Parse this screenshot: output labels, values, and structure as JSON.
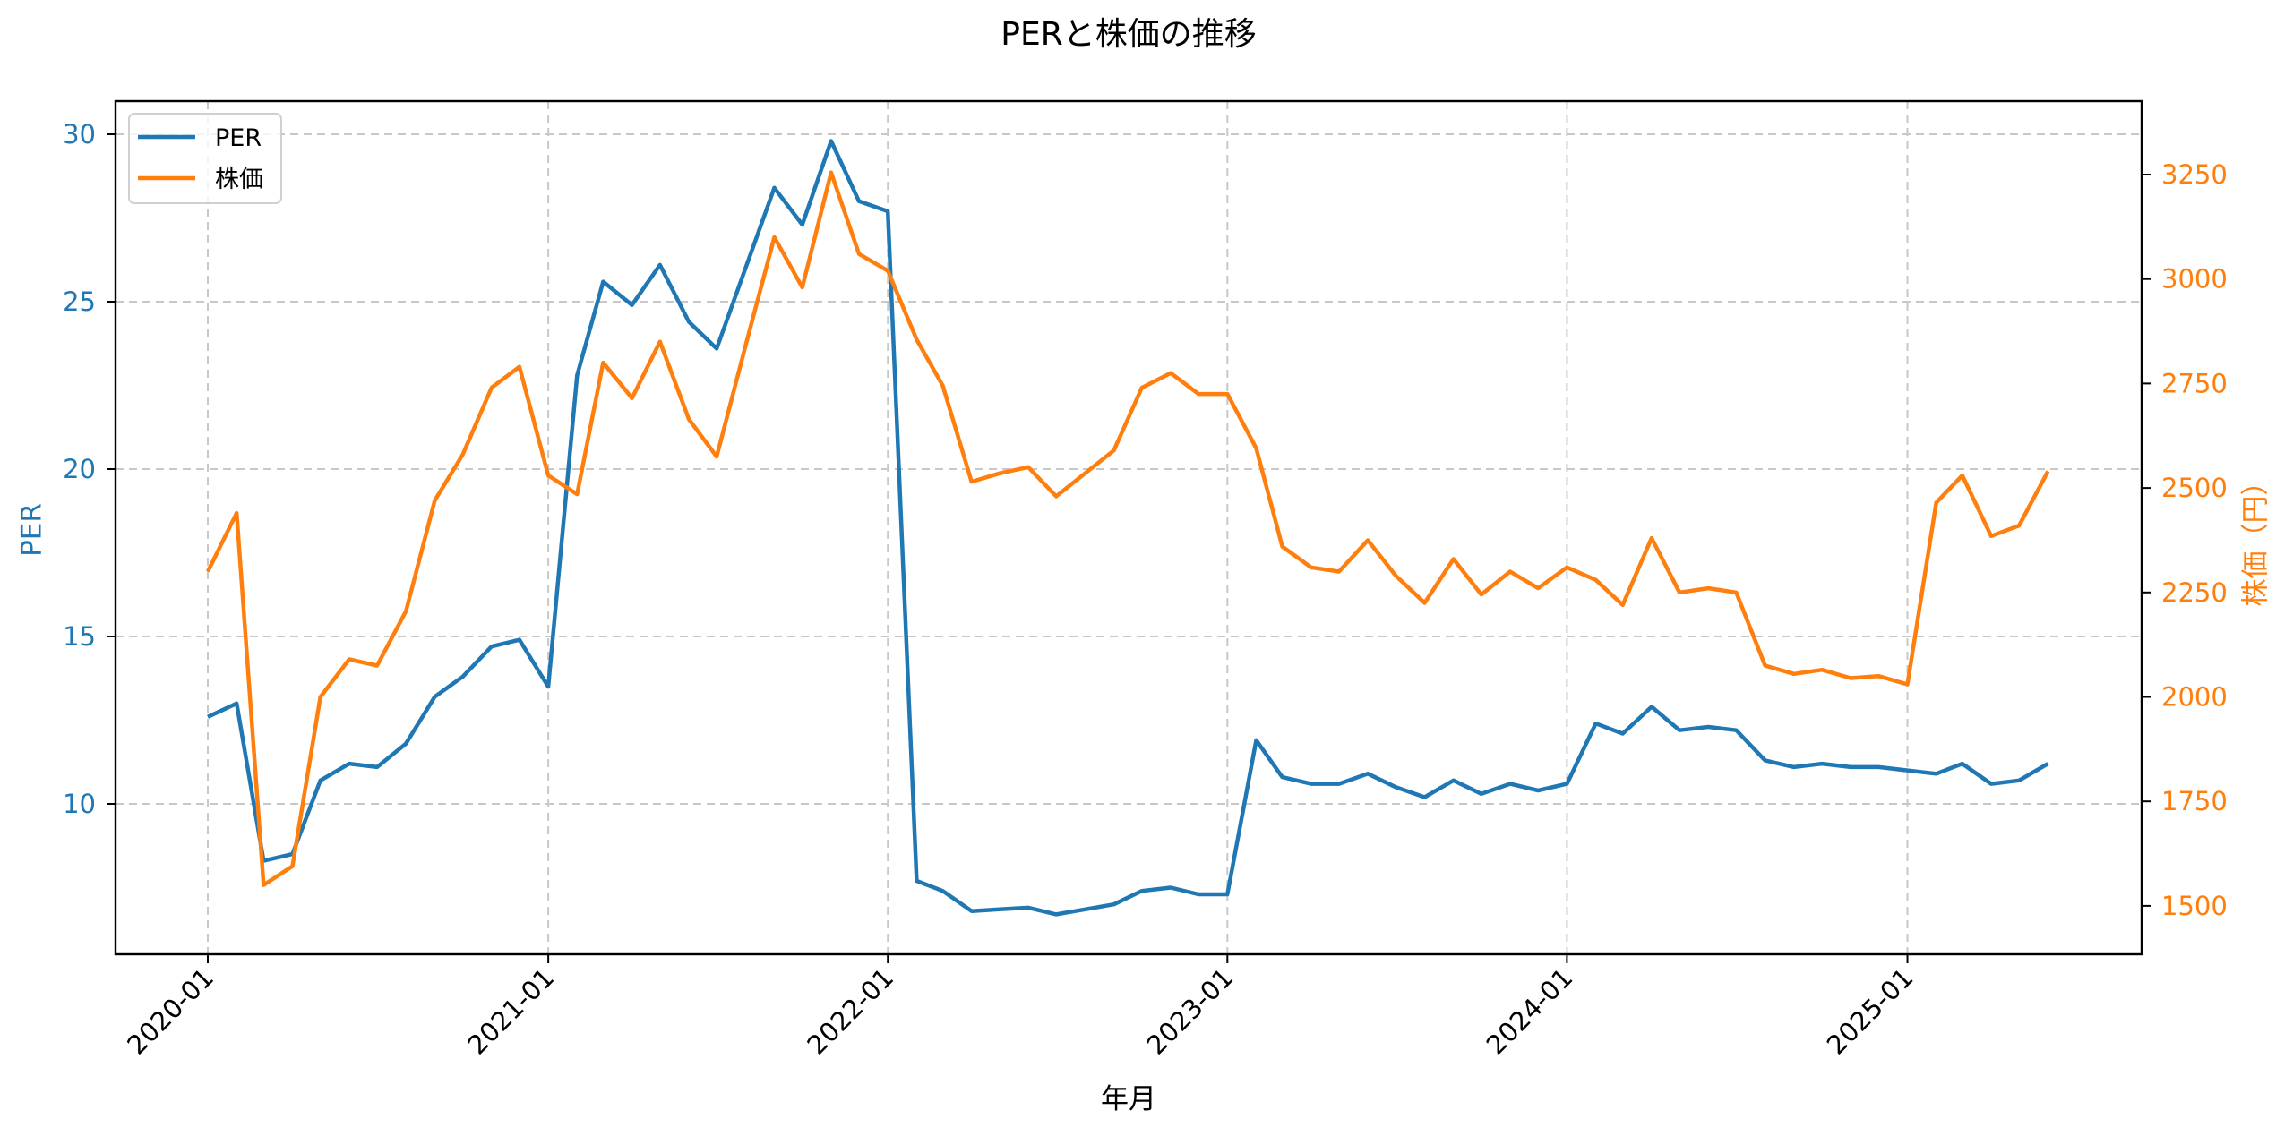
{
  "chart_data": {
    "type": "line",
    "title": "PERと株価の推移",
    "xlabel": "年月",
    "ylabel_left": "PER",
    "ylabel_right": "株価（円）",
    "x_tick_labels": [
      "2020-01",
      "2021-01",
      "2022-01",
      "2023-01",
      "2024-01",
      "2025-01"
    ],
    "y_left_ticks": [
      10,
      15,
      20,
      25,
      30
    ],
    "y_right_ticks": [
      1500,
      1750,
      2000,
      2250,
      2500,
      2750,
      3000,
      3250
    ],
    "y_left_range": [
      5.6,
      31.0
    ],
    "y_right_range": [
      1385,
      3415
    ],
    "grid": true,
    "legend_position": "upper left",
    "x": [
      "2020-01",
      "2020-02",
      "2020-03",
      "2020-04",
      "2020-05",
      "2020-06",
      "2020-07",
      "2020-08",
      "2020-09",
      "2020-10",
      "2020-11",
      "2020-12",
      "2021-01",
      "2021-02",
      "2021-03",
      "2021-04",
      "2021-05",
      "2021-06",
      "2021-07",
      "2021-08",
      "2021-09",
      "2021-10",
      "2021-11",
      "2021-12",
      "2022-01",
      "2022-02",
      "2022-03",
      "2022-04",
      "2022-05",
      "2022-06",
      "2022-07",
      "2022-08",
      "2022-09",
      "2022-10",
      "2022-11",
      "2022-12",
      "2023-01",
      "2023-02",
      "2023-03",
      "2023-04",
      "2023-05",
      "2023-06",
      "2023-07",
      "2023-08",
      "2023-09",
      "2023-10",
      "2023-11",
      "2023-12",
      "2024-01",
      "2024-02",
      "2024-03",
      "2024-04",
      "2024-05",
      "2024-06",
      "2024-07",
      "2024-08",
      "2024-09",
      "2024-10",
      "2024-11",
      "2024-12",
      "2025-01",
      "2025-02",
      "2025-03",
      "2025-04",
      "2025-05",
      "2025-06"
    ],
    "series": [
      {
        "name": "PER",
        "axis": "left",
        "color": "#1f77b4",
        "values": [
          12.6,
          13.0,
          8.3,
          8.5,
          10.7,
          11.2,
          11.1,
          11.8,
          13.2,
          13.8,
          14.7,
          14.9,
          13.5,
          22.8,
          25.6,
          24.9,
          26.1,
          24.4,
          23.6,
          26.0,
          28.4,
          27.3,
          29.8,
          28.0,
          27.7,
          7.7,
          7.4,
          6.8,
          6.85,
          6.9,
          6.7,
          6.85,
          7.0,
          7.4,
          7.5,
          7.3,
          7.3,
          11.9,
          10.8,
          10.6,
          10.6,
          10.9,
          10.5,
          10.2,
          10.7,
          10.3,
          10.6,
          10.4,
          10.6,
          12.4,
          12.1,
          12.9,
          12.2,
          12.3,
          12.2,
          11.3,
          11.1,
          11.2,
          11.1,
          11.1,
          11.0,
          10.9,
          11.2,
          10.6,
          10.7,
          11.2
        ]
      },
      {
        "name": "株価",
        "axis": "right",
        "color": "#ff7f0e",
        "values": [
          2300,
          2440,
          1550,
          1595,
          2000,
          2090,
          2075,
          2205,
          2470,
          2580,
          2740,
          2790,
          2530,
          2485,
          2800,
          2715,
          2850,
          2665,
          2575,
          2840,
          3100,
          2980,
          3255,
          3060,
          3020,
          2855,
          2745,
          2515,
          2535,
          2550,
          2480,
          2535,
          2590,
          2740,
          2775,
          2725,
          2725,
          2595,
          2360,
          2310,
          2300,
          2375,
          2290,
          2225,
          2330,
          2245,
          2300,
          2260,
          2310,
          2280,
          2220,
          2380,
          2250,
          2260,
          2250,
          2075,
          2055,
          2065,
          2045,
          2050,
          2030,
          2465,
          2530,
          2385,
          2410,
          2540
        ]
      }
    ]
  },
  "legend": {
    "items": [
      {
        "label": "PER",
        "color": "#1f77b4"
      },
      {
        "label": "株価",
        "color": "#ff7f0e"
      }
    ]
  },
  "colors": {
    "left_axis": "#1f77b4",
    "right_axis": "#ff7f0e",
    "grid": "#c8c8c8",
    "frame": "#000000"
  }
}
